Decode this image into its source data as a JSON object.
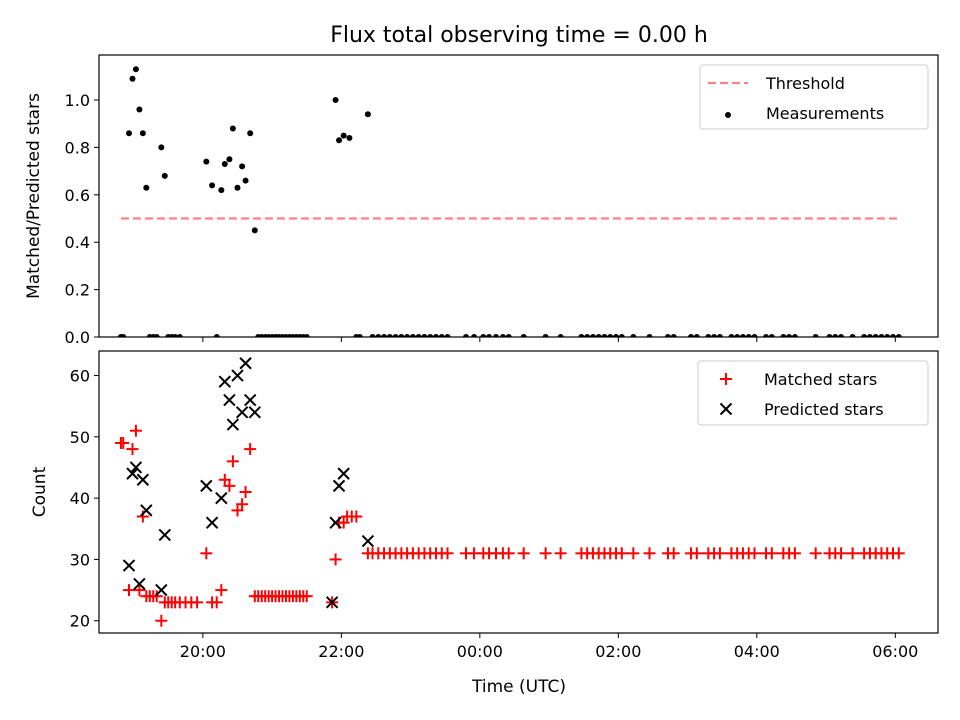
{
  "title": "Flux total observing time = 0.00 h",
  "xlabel": "Time (UTC)",
  "colors": {
    "threshold": "#ff8080",
    "measurement": "#000000",
    "matched": "#ff0000",
    "predicted": "#000000"
  },
  "chart_data": [
    {
      "type": "scatter",
      "ylabel": "Matched/Predicted stars",
      "ylim": [
        0,
        1.19
      ],
      "yticks": [
        "0.0",
        "0.2",
        "0.4",
        "0.6",
        "0.8",
        "1.0"
      ],
      "xlim": [
        "18:30",
        "06:37"
      ],
      "xticks": [
        "20:00",
        "22:00",
        "00:00",
        "02:00",
        "04:00",
        "06:00"
      ],
      "legend": {
        "placement": "top-right",
        "entries": [
          "Threshold",
          "Measurements"
        ]
      },
      "threshold": {
        "name": "Threshold",
        "y": 0.5,
        "x_range": [
          "18:49",
          "06:03"
        ],
        "style": "dashed"
      },
      "series": [
        {
          "name": "Measurements",
          "points": [
            [
              "18:49",
              0
            ],
            [
              "18:51",
              0
            ],
            [
              "18:56",
              0.86
            ],
            [
              "18:59",
              1.09
            ],
            [
              "19:02",
              1.13
            ],
            [
              "19:05",
              0.96
            ],
            [
              "19:08",
              0.86
            ],
            [
              "19:11",
              0.63
            ],
            [
              "19:14",
              0
            ],
            [
              "19:17",
              0
            ],
            [
              "19:20",
              0
            ],
            [
              "19:24",
              0.8
            ],
            [
              "19:27",
              0.68
            ],
            [
              "19:30",
              0
            ],
            [
              "19:33",
              0
            ],
            [
              "19:36",
              0
            ],
            [
              "19:40",
              0
            ],
            [
              "20:03",
              0.74
            ],
            [
              "20:08",
              0.64
            ],
            [
              "20:12",
              0
            ],
            [
              "20:16",
              0.62
            ],
            [
              "20:19",
              0.73
            ],
            [
              "20:23",
              0.75
            ],
            [
              "20:26",
              0.88
            ],
            [
              "20:30",
              0.63
            ],
            [
              "20:34",
              0.72
            ],
            [
              "20:37",
              0.66
            ],
            [
              "20:41",
              0.86
            ],
            [
              "20:45",
              0.45
            ],
            [
              "20:48",
              0
            ],
            [
              "20:51",
              0
            ],
            [
              "20:54",
              0
            ],
            [
              "20:57",
              0
            ],
            [
              "21:00",
              0
            ],
            [
              "21:03",
              0
            ],
            [
              "21:06",
              0
            ],
            [
              "21:09",
              0
            ],
            [
              "21:12",
              0
            ],
            [
              "21:15",
              0
            ],
            [
              "21:18",
              0
            ],
            [
              "21:21",
              0
            ],
            [
              "21:24",
              0
            ],
            [
              "21:27",
              0
            ],
            [
              "21:30",
              0
            ],
            [
              "21:55",
              1
            ],
            [
              "21:58",
              0.83
            ],
            [
              "22:02",
              0.85
            ],
            [
              "22:07",
              0.84
            ],
            [
              "22:13",
              0
            ],
            [
              "22:16",
              0
            ],
            [
              "22:23",
              0.94
            ],
            [
              "22:27",
              0
            ],
            [
              "22:32",
              0
            ],
            [
              "22:37",
              0
            ],
            [
              "22:42",
              0
            ],
            [
              "22:47",
              0
            ],
            [
              "22:52",
              0
            ],
            [
              "22:57",
              0
            ],
            [
              "23:02",
              0
            ],
            [
              "23:07",
              0
            ],
            [
              "23:12",
              0
            ],
            [
              "23:17",
              0
            ],
            [
              "23:22",
              0
            ],
            [
              "23:27",
              0
            ],
            [
              "23:32",
              0
            ],
            [
              "23:48",
              0
            ],
            [
              "23:55",
              0
            ],
            [
              "00:03",
              0
            ],
            [
              "00:08",
              0
            ],
            [
              "00:14",
              0
            ],
            [
              "00:20",
              0
            ],
            [
              "00:25",
              0
            ],
            [
              "00:38",
              0
            ],
            [
              "00:57",
              0
            ],
            [
              "01:10",
              0
            ],
            [
              "01:28",
              0
            ],
            [
              "01:33",
              0
            ],
            [
              "01:38",
              0
            ],
            [
              "01:43",
              0
            ],
            [
              "01:48",
              0
            ],
            [
              "01:53",
              0
            ],
            [
              "01:58",
              0
            ],
            [
              "02:03",
              0
            ],
            [
              "02:13",
              0
            ],
            [
              "02:27",
              0
            ],
            [
              "02:43",
              0
            ],
            [
              "02:48",
              0
            ],
            [
              "03:03",
              0
            ],
            [
              "03:08",
              0
            ],
            [
              "03:18",
              0
            ],
            [
              "03:23",
              0
            ],
            [
              "03:28",
              0
            ],
            [
              "03:38",
              0
            ],
            [
              "03:43",
              0
            ],
            [
              "03:48",
              0
            ],
            [
              "03:53",
              0
            ],
            [
              "03:58",
              0
            ],
            [
              "04:08",
              0
            ],
            [
              "04:13",
              0
            ],
            [
              "04:23",
              0
            ],
            [
              "04:28",
              0
            ],
            [
              "04:33",
              0
            ],
            [
              "04:51",
              0
            ],
            [
              "05:03",
              0
            ],
            [
              "05:08",
              0
            ],
            [
              "05:13",
              0
            ],
            [
              "05:23",
              0
            ],
            [
              "05:33",
              0
            ],
            [
              "05:38",
              0
            ],
            [
              "05:43",
              0
            ],
            [
              "05:48",
              0
            ],
            [
              "05:53",
              0
            ],
            [
              "05:58",
              0
            ],
            [
              "06:03",
              0
            ]
          ]
        }
      ]
    },
    {
      "type": "scatter",
      "ylabel": "Count",
      "ylim": [
        18,
        64
      ],
      "yticks": [
        "20",
        "30",
        "40",
        "50",
        "60"
      ],
      "xlim": [
        "18:30",
        "06:37"
      ],
      "xticks": [
        "20:00",
        "22:00",
        "00:00",
        "02:00",
        "04:00",
        "06:00"
      ],
      "legend": {
        "placement": "top-right",
        "entries": [
          "Matched stars",
          "Predicted stars"
        ]
      },
      "series": [
        {
          "name": "Matched stars",
          "marker": "+",
          "points": [
            [
              "18:49",
              49
            ],
            [
              "18:51",
              49
            ],
            [
              "18:56",
              25
            ],
            [
              "18:59",
              48
            ],
            [
              "19:02",
              51
            ],
            [
              "19:05",
              25
            ],
            [
              "19:08",
              37
            ],
            [
              "19:11",
              24
            ],
            [
              "19:14",
              24
            ],
            [
              "19:17",
              24
            ],
            [
              "19:20",
              24
            ],
            [
              "19:24",
              20
            ],
            [
              "19:27",
              23
            ],
            [
              "19:30",
              23
            ],
            [
              "19:33",
              23
            ],
            [
              "19:36",
              23
            ],
            [
              "19:40",
              23
            ],
            [
              "19:45",
              23
            ],
            [
              "19:50",
              23
            ],
            [
              "19:55",
              23
            ],
            [
              "20:03",
              31
            ],
            [
              "20:08",
              23
            ],
            [
              "20:12",
              23
            ],
            [
              "20:16",
              25
            ],
            [
              "20:19",
              43
            ],
            [
              "20:23",
              42
            ],
            [
              "20:26",
              46
            ],
            [
              "20:30",
              38
            ],
            [
              "20:34",
              39
            ],
            [
              "20:37",
              41
            ],
            [
              "20:41",
              48
            ],
            [
              "20:45",
              24
            ],
            [
              "20:48",
              24
            ],
            [
              "20:51",
              24
            ],
            [
              "20:54",
              24
            ],
            [
              "20:57",
              24
            ],
            [
              "21:00",
              24
            ],
            [
              "21:03",
              24
            ],
            [
              "21:06",
              24
            ],
            [
              "21:09",
              24
            ],
            [
              "21:12",
              24
            ],
            [
              "21:15",
              24
            ],
            [
              "21:18",
              24
            ],
            [
              "21:21",
              24
            ],
            [
              "21:24",
              24
            ],
            [
              "21:27",
              24
            ],
            [
              "21:30",
              24
            ],
            [
              "21:52",
              23
            ],
            [
              "21:55",
              30
            ],
            [
              "21:58",
              36
            ],
            [
              "22:02",
              36
            ],
            [
              "22:05",
              37
            ],
            [
              "22:09",
              37
            ],
            [
              "22:13",
              37
            ],
            [
              "22:23",
              31
            ],
            [
              "22:27",
              31
            ],
            [
              "22:32",
              31
            ],
            [
              "22:37",
              31
            ],
            [
              "22:42",
              31
            ],
            [
              "22:47",
              31
            ],
            [
              "22:52",
              31
            ],
            [
              "22:57",
              31
            ],
            [
              "23:02",
              31
            ],
            [
              "23:07",
              31
            ],
            [
              "23:12",
              31
            ],
            [
              "23:17",
              31
            ],
            [
              "23:22",
              31
            ],
            [
              "23:27",
              31
            ],
            [
              "23:32",
              31
            ],
            [
              "23:48",
              31
            ],
            [
              "23:55",
              31
            ],
            [
              "00:03",
              31
            ],
            [
              "00:08",
              31
            ],
            [
              "00:14",
              31
            ],
            [
              "00:20",
              31
            ],
            [
              "00:25",
              31
            ],
            [
              "00:38",
              31
            ],
            [
              "00:57",
              31
            ],
            [
              "01:10",
              31
            ],
            [
              "01:28",
              31
            ],
            [
              "01:33",
              31
            ],
            [
              "01:38",
              31
            ],
            [
              "01:43",
              31
            ],
            [
              "01:48",
              31
            ],
            [
              "01:53",
              31
            ],
            [
              "01:58",
              31
            ],
            [
              "02:03",
              31
            ],
            [
              "02:13",
              31
            ],
            [
              "02:27",
              31
            ],
            [
              "02:43",
              31
            ],
            [
              "02:48",
              31
            ],
            [
              "03:03",
              31
            ],
            [
              "03:08",
              31
            ],
            [
              "03:18",
              31
            ],
            [
              "03:23",
              31
            ],
            [
              "03:28",
              31
            ],
            [
              "03:38",
              31
            ],
            [
              "03:43",
              31
            ],
            [
              "03:48",
              31
            ],
            [
              "03:53",
              31
            ],
            [
              "03:58",
              31
            ],
            [
              "04:08",
              31
            ],
            [
              "04:13",
              31
            ],
            [
              "04:23",
              31
            ],
            [
              "04:28",
              31
            ],
            [
              "04:33",
              31
            ],
            [
              "04:51",
              31
            ],
            [
              "05:03",
              31
            ],
            [
              "05:08",
              31
            ],
            [
              "05:13",
              31
            ],
            [
              "05:23",
              31
            ],
            [
              "05:33",
              31
            ],
            [
              "05:38",
              31
            ],
            [
              "05:43",
              31
            ],
            [
              "05:48",
              31
            ],
            [
              "05:53",
              31
            ],
            [
              "05:58",
              31
            ],
            [
              "06:03",
              31
            ]
          ]
        },
        {
          "name": "Predicted stars",
          "marker": "x",
          "points": [
            [
              "18:56",
              29
            ],
            [
              "18:59",
              44
            ],
            [
              "19:02",
              45
            ],
            [
              "19:05",
              26
            ],
            [
              "19:08",
              43
            ],
            [
              "19:11",
              38
            ],
            [
              "19:24",
              25
            ],
            [
              "19:27",
              34
            ],
            [
              "20:03",
              42
            ],
            [
              "20:08",
              36
            ],
            [
              "20:16",
              40
            ],
            [
              "20:19",
              59
            ],
            [
              "20:23",
              56
            ],
            [
              "20:26",
              52
            ],
            [
              "20:30",
              60
            ],
            [
              "20:34",
              54
            ],
            [
              "20:37",
              62
            ],
            [
              "20:41",
              56
            ],
            [
              "20:45",
              54
            ],
            [
              "21:52",
              23
            ],
            [
              "21:55",
              36
            ],
            [
              "21:58",
              42
            ],
            [
              "22:02",
              44
            ],
            [
              "22:23",
              33
            ]
          ]
        }
      ]
    }
  ]
}
